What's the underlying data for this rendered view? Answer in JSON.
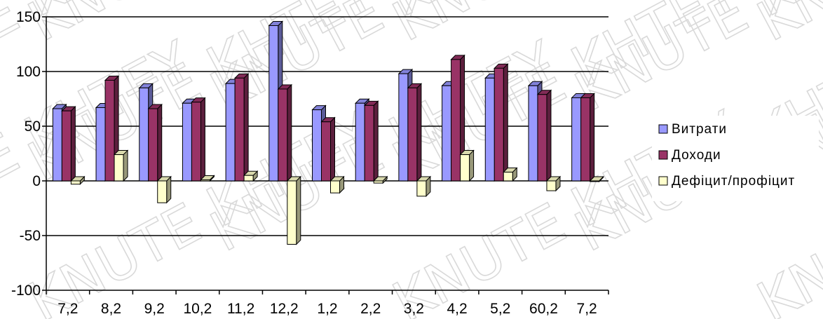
{
  "watermark": {
    "text": "KNUTE KHTEY"
  },
  "chart_data": {
    "type": "bar",
    "categories": [
      "7,2",
      "8,2",
      "9,2",
      "10,2",
      "11,2",
      "12,2",
      "1,2",
      "2,2",
      "3,2",
      "4,2",
      "5,2",
      "60,2",
      "7,2"
    ],
    "series": [
      {
        "name": "Витрати",
        "color": "#9999ff",
        "values": [
          66,
          67,
          85,
          71,
          89,
          142,
          65,
          71,
          98,
          87,
          94,
          87,
          76
        ]
      },
      {
        "name": "Доходи",
        "color": "#993366",
        "values": [
          64,
          92,
          66,
          72,
          94,
          84,
          54,
          69,
          85,
          111,
          103,
          79,
          76
        ]
      },
      {
        "name": "Дефіцит/профіцит",
        "color": "#ffffcc",
        "values": [
          -3,
          24,
          -20,
          1,
          5,
          -58,
          -11,
          -2,
          -14,
          24,
          8,
          -9,
          0
        ]
      }
    ],
    "yticks": [
      150,
      100,
      50,
      0,
      -50,
      -100
    ],
    "ylim": [
      -100,
      150
    ],
    "grid": true,
    "legend_position": "right"
  }
}
